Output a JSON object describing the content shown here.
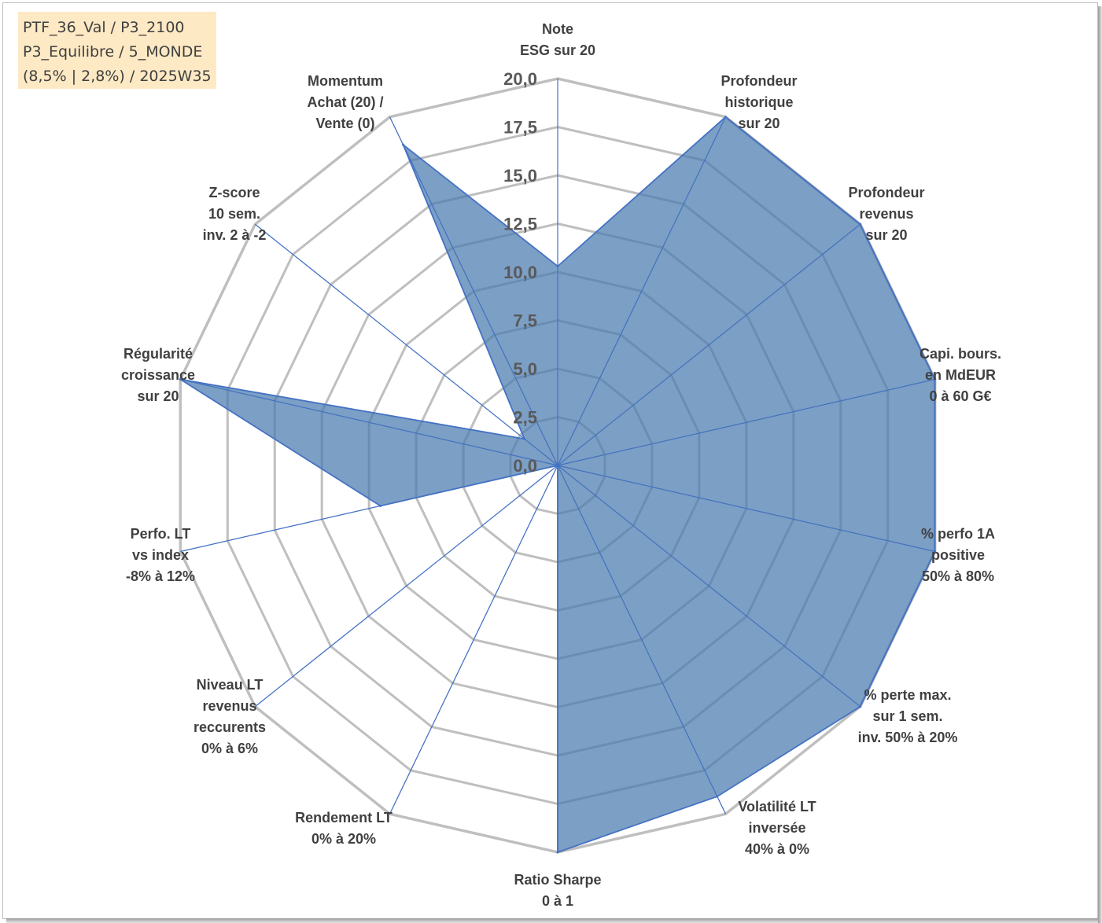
{
  "info_box": {
    "lines": [
      "PTF_36_Val / P3_2100",
      "P3_Equilibre / 5_MONDE",
      "(8,5% | 2,8%) / 2025W35"
    ]
  },
  "colors": {
    "fill": "#4a7aae",
    "series_line": "#4472c4",
    "grid": "#bfbfbf",
    "spoke": "#4472c4",
    "info_background": "#fde9c4"
  },
  "chart_data": {
    "type": "radar",
    "rmin": 0,
    "rmax": 20,
    "tick_step": 2.5,
    "ticks": [
      "0,0",
      "2,5",
      "5,0",
      "7,5",
      "10,0",
      "12,5",
      "15,0",
      "17,5",
      "20,0"
    ],
    "grid": true,
    "legend": "none",
    "axes": [
      [
        "Note",
        "ESG sur 20"
      ],
      [
        "Profondeur",
        "historique",
        "sur 20"
      ],
      [
        "Profondeur",
        "revenus",
        "sur 20"
      ],
      [
        "Capi. bours.",
        "en MdEUR",
        "0 à 60 G€"
      ],
      [
        "% perfo 1A",
        "positive",
        "50% à 80%"
      ],
      [
        "% perte max.",
        "sur 1 sem.",
        "inv. 50% à 20%"
      ],
      [
        "Volatilité LT",
        "inversée",
        "40% à 0%"
      ],
      [
        "Ratio Sharpe",
        "0 à 1"
      ],
      [
        "Rendement LT",
        "0% à 20%"
      ],
      [
        "Niveau LT",
        "revenus",
        "reccurents",
        "0% à 6%"
      ],
      [
        "Perfo. LT",
        "vs index",
        "-8% à 12%"
      ],
      [
        "Régularité",
        "croissance",
        "sur 20"
      ],
      [
        "Z-score",
        "10 sem.",
        "inv. 2 à -2"
      ],
      [
        "Momentum",
        "Achat (20) /",
        "Vente (0)"
      ]
    ],
    "series": [
      {
        "values": [
          10.3,
          20,
          20,
          20,
          20,
          20,
          19.0,
          20,
          0,
          0,
          9.4,
          20,
          2.2,
          18.4
        ]
      }
    ]
  }
}
